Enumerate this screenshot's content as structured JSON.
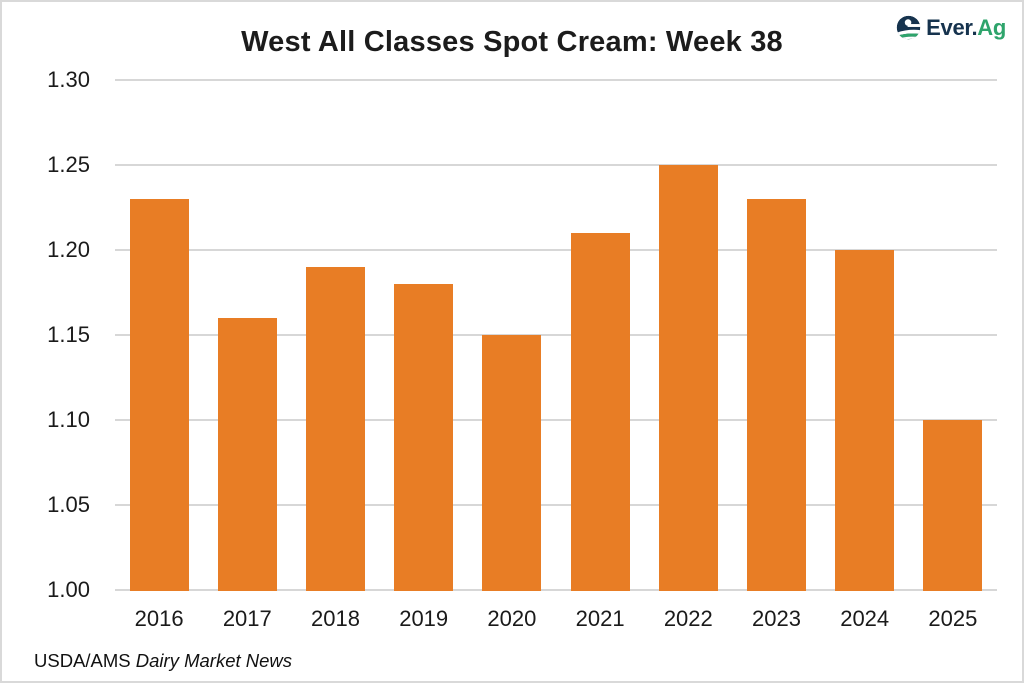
{
  "header": {
    "title": "West All Classes Spot Cream: Week 38"
  },
  "logo": {
    "text_primary": "Ever.",
    "text_accent": "Ag",
    "navy": "#16334e",
    "green": "#2ea46b"
  },
  "footer": {
    "source_prefix": "USDA/AMS ",
    "source_name": "Dairy Market News"
  },
  "chart_data": {
    "type": "bar",
    "title": "West All Classes Spot Cream: Week 38",
    "categories": [
      "2016",
      "2017",
      "2018",
      "2019",
      "2020",
      "2021",
      "2022",
      "2023",
      "2024",
      "2025"
    ],
    "values": [
      1.23,
      1.16,
      1.19,
      1.18,
      1.15,
      1.21,
      1.25,
      1.23,
      1.2,
      1.1
    ],
    "xlabel": "",
    "ylabel": "",
    "ylim": [
      1.0,
      1.3
    ],
    "yticks": [
      1.0,
      1.05,
      1.1,
      1.15,
      1.2,
      1.25,
      1.3
    ],
    "ytick_labels": [
      "1.00",
      "1.05",
      "1.10",
      "1.15",
      "1.20",
      "1.25",
      "1.30"
    ],
    "bar_color": "#e87d25",
    "gridline_color": "#d7d7d7",
    "grid": true,
    "legend": false,
    "source": "USDA/AMS Dairy Market News"
  }
}
